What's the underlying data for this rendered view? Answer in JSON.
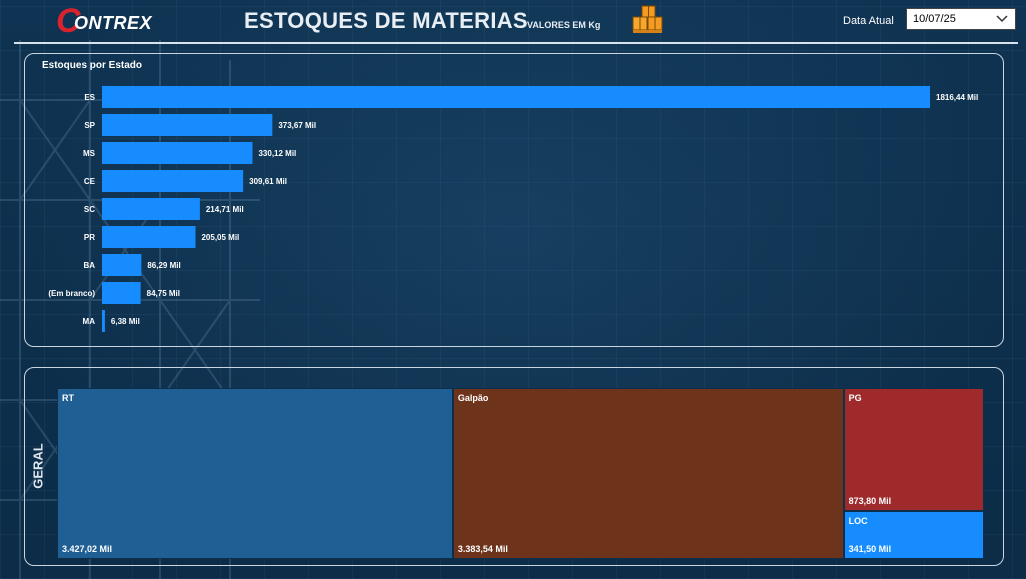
{
  "header": {
    "logo_initial": "C",
    "logo_rest": "ONTREX",
    "title": "ESTOQUES DE MATERIAS",
    "subtitle": "VALORES EM Kg",
    "date_label": "Data Atual",
    "date_value": "10/07/25"
  },
  "colors": {
    "bar": "#168cff",
    "rt": "#1f5f93",
    "galpao": "#6e331b",
    "pg": "#9e2a2b",
    "loc": "#168cff"
  },
  "chart_data": [
    {
      "type": "bar",
      "orientation": "horizontal",
      "title": "Estoques por Estado",
      "categories": [
        "ES",
        "SP",
        "MS",
        "CE",
        "SC",
        "PR",
        "BA",
        "(Em branco)",
        "MA"
      ],
      "values": [
        1816.44,
        373.67,
        330.12,
        309.61,
        214.71,
        205.05,
        86.29,
        84.75,
        6.38
      ],
      "data_labels": [
        "1816,44 Mil",
        "373,67 Mil",
        "330,12 Mil",
        "309,61 Mil",
        "214,71 Mil",
        "205,05 Mil",
        "86,29 Mil",
        "84,75 Mil",
        "6,38 Mil"
      ],
      "grid": false,
      "legend": "none"
    },
    {
      "type": "treemap",
      "group_label": "GERAL",
      "categories": [
        "RT",
        "Galpão",
        "PG",
        "LOC"
      ],
      "values": [
        3427.02,
        3383.54,
        873.8,
        341.5
      ],
      "data_labels": [
        "3.427,02 Mil",
        "3.383,54 Mil",
        "873,80 Mil",
        "341,50 Mil"
      ]
    }
  ]
}
